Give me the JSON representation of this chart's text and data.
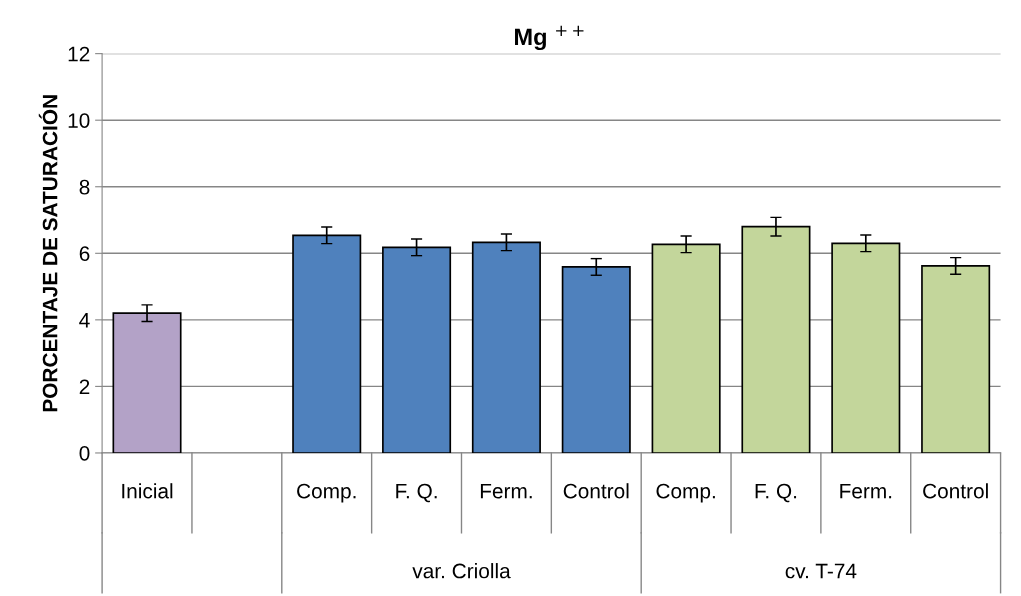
{
  "chart_data": {
    "type": "bar",
    "title": "Mg $^{++}$",
    "ylabel": "PORCENTAJE DE SATURACIÓN",
    "categories": [
      "Inicial",
      null,
      "Comp.",
      "F. Q.",
      "Ferm.",
      "Control",
      "Comp.",
      "F. Q.",
      "Ferm.",
      "Control"
    ],
    "values": [
      4.2,
      null,
      6.54,
      6.18,
      6.33,
      5.59,
      6.27,
      6.8,
      6.3,
      5.62
    ],
    "errors": [
      0.25,
      null,
      0.25,
      0.25,
      0.25,
      0.25,
      0.25,
      0.28,
      0.25,
      0.25
    ],
    "colors": [
      "#b3a2c7",
      "#b3a2c7",
      "#4f81bd",
      "#4f81bd",
      "#4f81bd",
      "#4f81bd",
      "#c3d69b",
      "#c3d69b",
      "#c3d69b",
      "#c3d69b"
    ],
    "annotations": [
      "var. Criolla",
      "cv. T-74"
    ],
    "ylim": [
      0,
      12
    ],
    "yticks": [
      0,
      2,
      4,
      6,
      8,
      10,
      12
    ],
    "grid": "y"
  }
}
